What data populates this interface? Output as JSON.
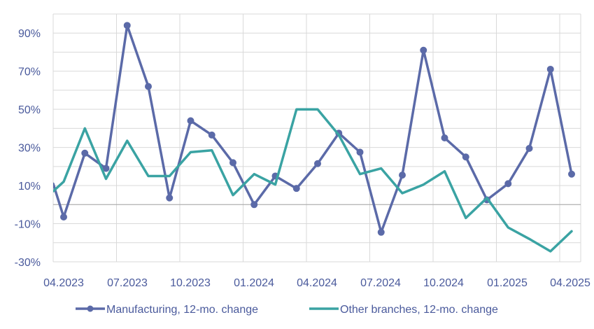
{
  "chart_data": {
    "type": "line",
    "title": "",
    "xlabel": "",
    "ylabel": "",
    "ylim": [
      -30,
      100
    ],
    "y_ticks": [
      -30,
      -10,
      10,
      30,
      50,
      70,
      90
    ],
    "y_tick_labels": [
      "-30%",
      "-10%",
      "10%",
      "30%",
      "50%",
      "70%",
      "90%"
    ],
    "x_tick_labels": [
      "04.2023",
      "07.2023",
      "10.2023",
      "01.2024",
      "04.2024",
      "07.2024",
      "10.2024",
      "01.2025",
      "04.2025"
    ],
    "grid": true,
    "legend_position": "bottom",
    "x": [
      "04.2023",
      "05.2023",
      "06.2023",
      "07.2023",
      "08.2023",
      "09.2023",
      "10.2023",
      "11.2023",
      "12.2023",
      "01.2024",
      "02.2024",
      "03.2024",
      "04.2024",
      "05.2024",
      "06.2024",
      "07.2024",
      "08.2024",
      "09.2024",
      "10.2024",
      "11.2024",
      "12.2024",
      "01.2025",
      "02.2025",
      "03.2025",
      "04.2025"
    ],
    "series": [
      {
        "name": "Manufacturing, 12-mo. change",
        "color": "#5b6aa8",
        "marker": "circle",
        "values": [
          -6.5,
          27,
          19,
          94,
          62,
          3.5,
          44,
          36.5,
          22,
          0,
          15,
          8.5,
          21.5,
          37.5,
          27.5,
          -14.5,
          15.5,
          81,
          35,
          25,
          2.5,
          11,
          29.5,
          71,
          16
        ]
      },
      {
        "name": "Other branches, 12-mo. change",
        "color": "#3aa3a3",
        "marker": "none",
        "values": [
          12,
          40,
          13.5,
          33.5,
          15,
          15,
          27.5,
          28.5,
          5,
          16,
          10.5,
          50,
          50,
          36.5,
          16,
          19,
          6,
          10.5,
          17.5,
          -7,
          3.5,
          -12,
          -18,
          -24.5,
          -14
        ]
      }
    ]
  }
}
